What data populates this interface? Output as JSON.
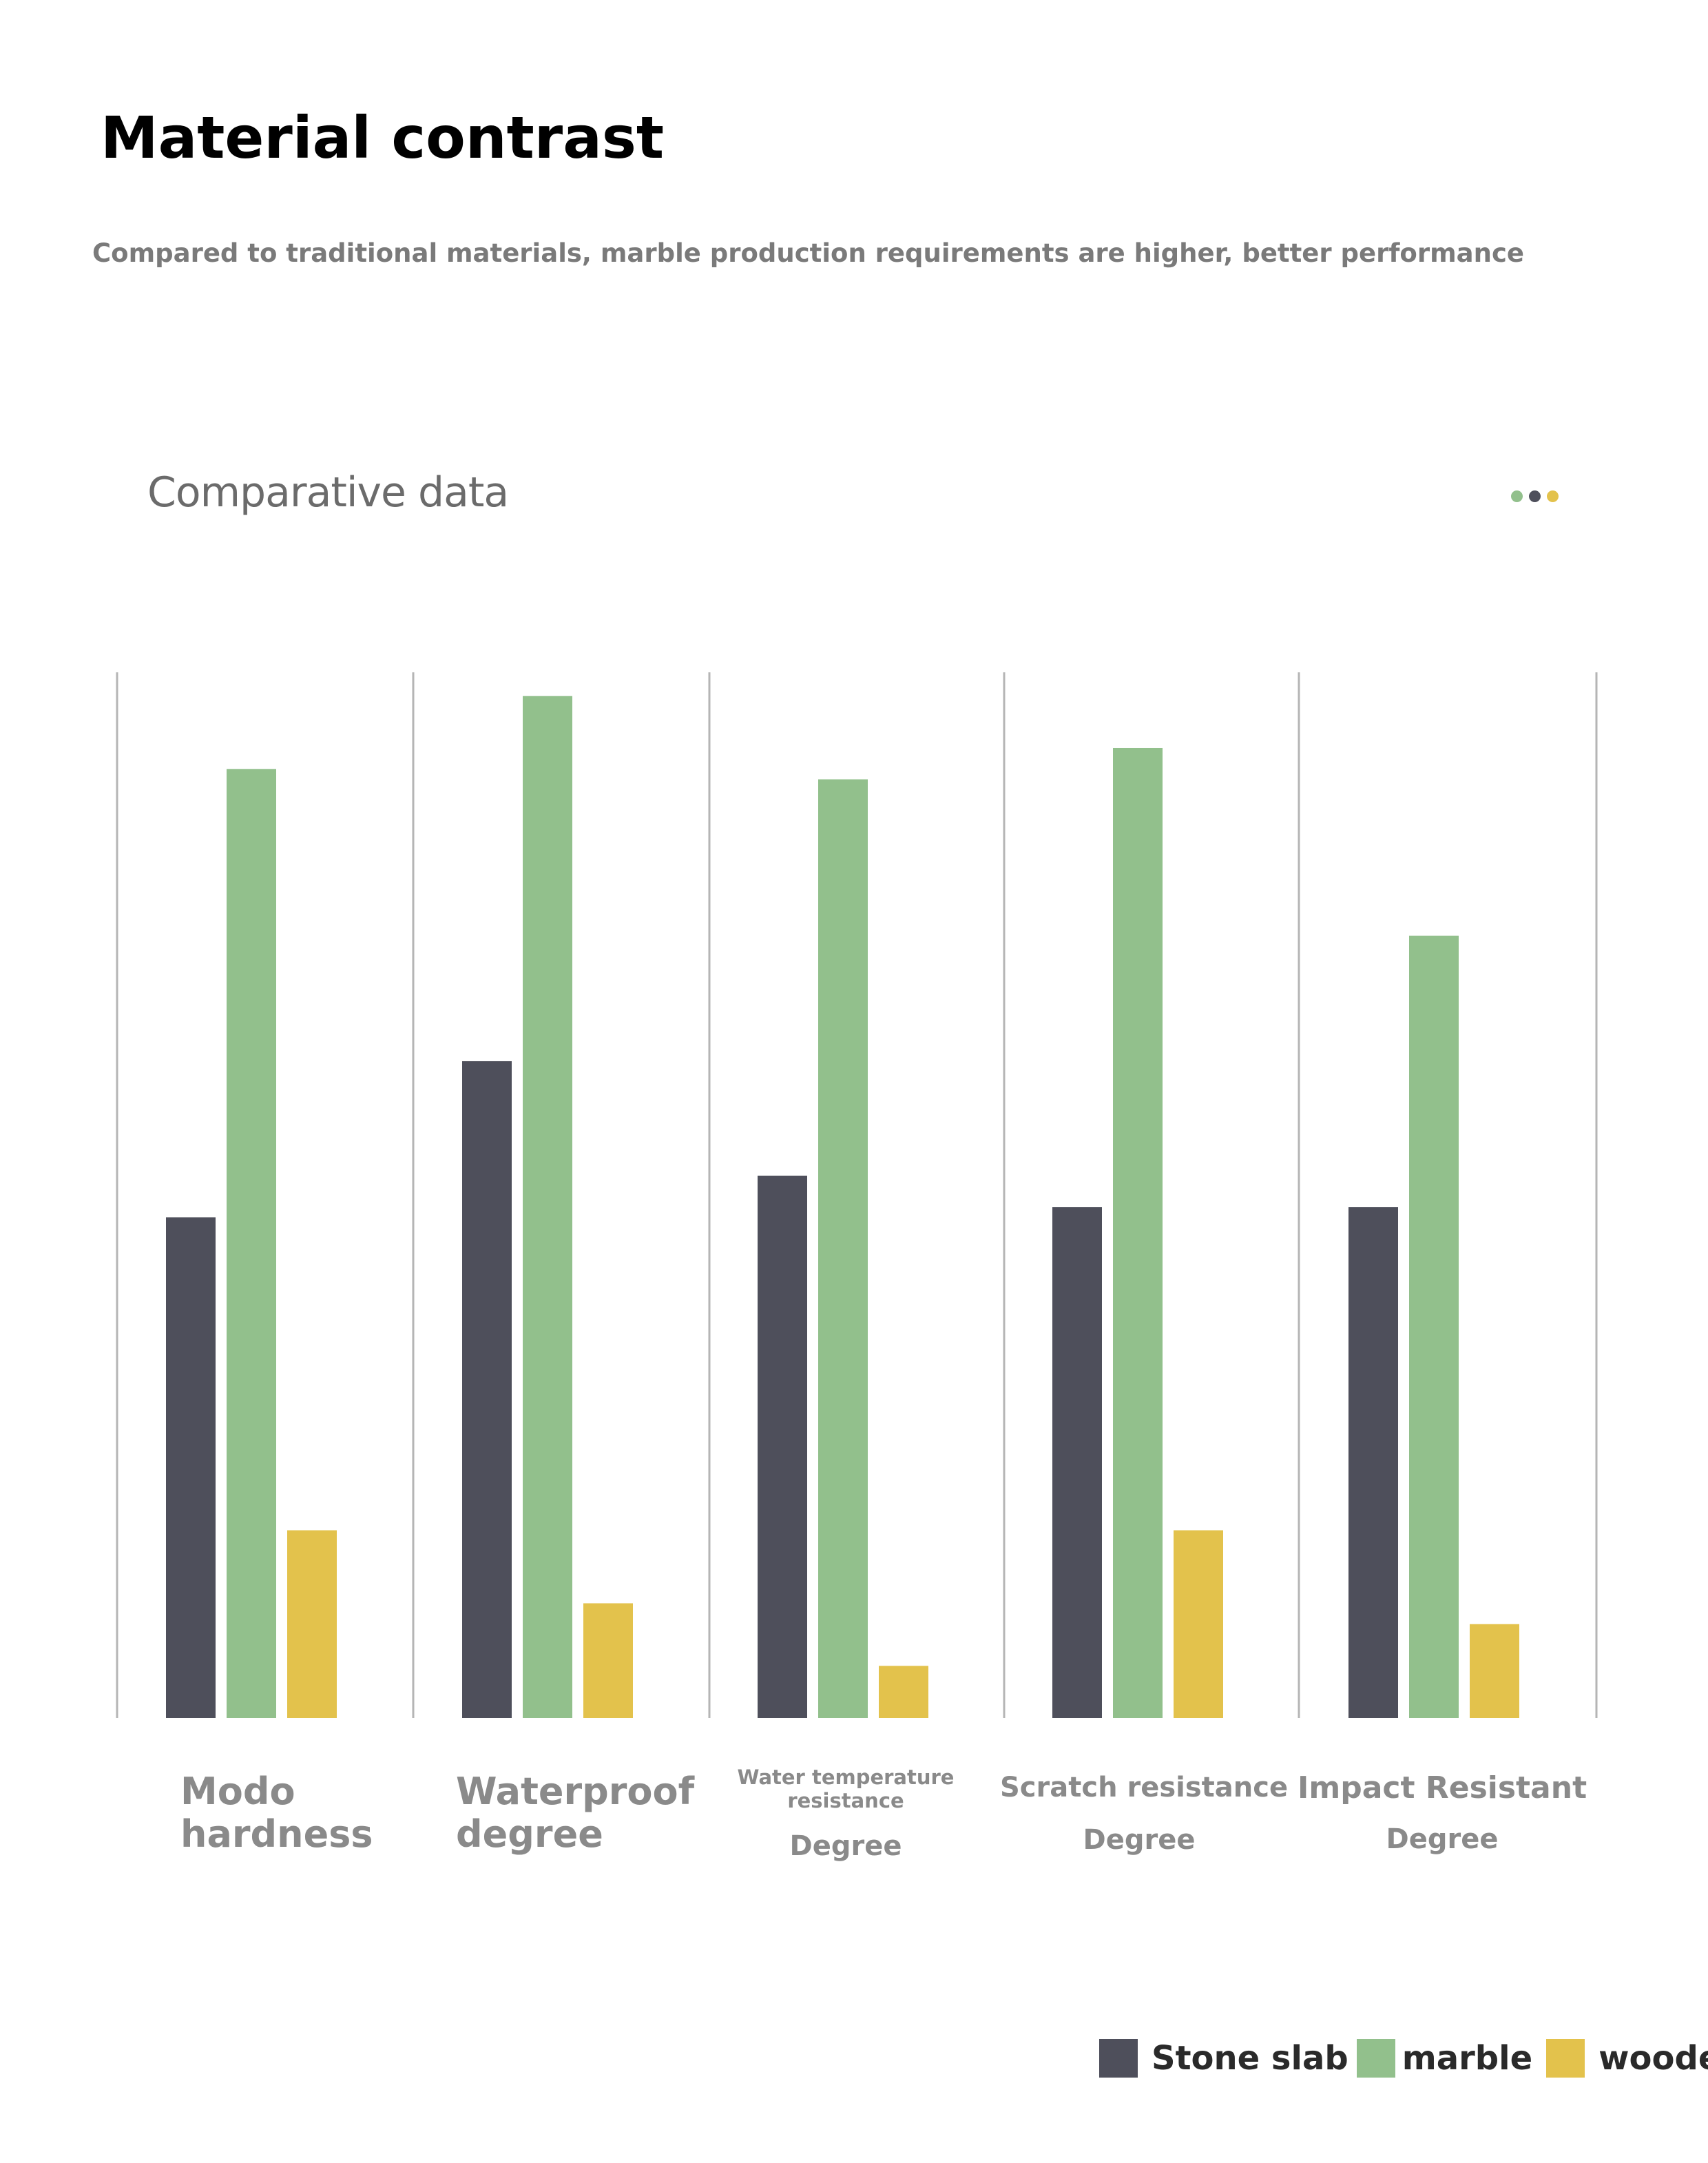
{
  "header": {
    "title": "Material contrast",
    "subtitle": "Compared to traditional materials, marble production requirements are higher, better performance"
  },
  "chart_header": {
    "title": "Comparative data"
  },
  "colors": {
    "stone_slab": "#4e4f5b",
    "marble": "#92c08c",
    "wooden": "#e3c24c",
    "axis_line": "#b5b5b5"
  },
  "chart_data": {
    "type": "bar",
    "title": "Comparative data",
    "categories": [
      "Modo hardness",
      "Waterproof degree",
      "Water temperature resistance Degree",
      "Scratch resistance Degree",
      "Impact Resistant Degree"
    ],
    "series": [
      {
        "name": "Stone slab",
        "values": [
          48,
          63,
          52,
          49,
          49
        ]
      },
      {
        "name": "marble",
        "values": [
          91,
          98,
          90,
          93,
          75
        ]
      },
      {
        "name": "wooden",
        "values": [
          18,
          11,
          5,
          18,
          9
        ]
      }
    ],
    "ylim": [
      0,
      100
    ],
    "grid": false,
    "legend": "bottom-right"
  },
  "labels": [
    {
      "line1": "Modo",
      "line2": "hardness"
    },
    {
      "line1": "Waterproof",
      "line2": "degree"
    },
    {
      "line1": "Water temperature resistance",
      "line2": "Degree"
    },
    {
      "line1": "Scratch resistance",
      "line2": "Degree"
    },
    {
      "line1": "Impact Resistant",
      "line2": "Degree"
    }
  ],
  "legend": {
    "items": [
      "Stone slab",
      "marble",
      "wooden"
    ]
  }
}
